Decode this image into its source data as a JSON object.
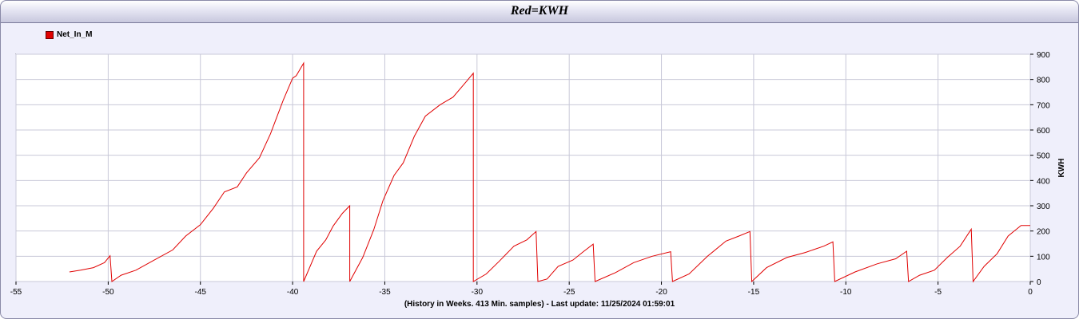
{
  "chart_data": {
    "type": "line",
    "title": "Red=KWH",
    "xlabel": "(History in Weeks. 413 Min. samples) - Last update: 11/25/2024 01:59:01",
    "ylabel": "KWH",
    "xlim": [
      -55,
      0
    ],
    "ylim": [
      0,
      900
    ],
    "x_ticks": [
      -55,
      -50,
      -45,
      -40,
      -35,
      -30,
      -25,
      -20,
      -15,
      -10,
      -5,
      0
    ],
    "y_ticks": [
      0,
      100,
      200,
      300,
      400,
      500,
      600,
      700,
      800,
      900
    ],
    "grid": true,
    "legend_position": "top-left",
    "series": [
      {
        "name": "Net_In_M",
        "color": "#e00000",
        "points": [
          [
            -52.1,
            38
          ],
          [
            -51.5,
            45
          ],
          [
            -50.8,
            55
          ],
          [
            -50.2,
            75
          ],
          [
            -49.9,
            102
          ],
          [
            -49.8,
            0
          ],
          [
            -49.3,
            25
          ],
          [
            -48.5,
            45
          ],
          [
            -47.5,
            85
          ],
          [
            -46.5,
            125
          ],
          [
            -45.8,
            180
          ],
          [
            -45.0,
            225
          ],
          [
            -44.3,
            290
          ],
          [
            -43.7,
            355
          ],
          [
            -43.0,
            375
          ],
          [
            -42.5,
            430
          ],
          [
            -41.8,
            490
          ],
          [
            -41.2,
            585
          ],
          [
            -40.5,
            720
          ],
          [
            -40.0,
            805
          ],
          [
            -39.8,
            815
          ],
          [
            -39.6,
            840
          ],
          [
            -39.4,
            865
          ],
          [
            -39.4,
            0
          ],
          [
            -38.7,
            120
          ],
          [
            -38.2,
            165
          ],
          [
            -37.8,
            220
          ],
          [
            -37.3,
            270
          ],
          [
            -36.9,
            300
          ],
          [
            -36.9,
            0
          ],
          [
            -36.2,
            95
          ],
          [
            -35.6,
            205
          ],
          [
            -35.1,
            320
          ],
          [
            -34.5,
            420
          ],
          [
            -34.0,
            470
          ],
          [
            -33.4,
            575
          ],
          [
            -32.8,
            655
          ],
          [
            -32.0,
            700
          ],
          [
            -31.3,
            730
          ],
          [
            -30.6,
            790
          ],
          [
            -30.2,
            825
          ],
          [
            -30.2,
            0
          ],
          [
            -29.5,
            30
          ],
          [
            -28.8,
            80
          ],
          [
            -28.0,
            140
          ],
          [
            -27.3,
            165
          ],
          [
            -26.8,
            198
          ],
          [
            -26.7,
            0
          ],
          [
            -26.2,
            10
          ],
          [
            -25.6,
            60
          ],
          [
            -24.8,
            85
          ],
          [
            -24.2,
            120
          ],
          [
            -23.7,
            148
          ],
          [
            -23.6,
            0
          ],
          [
            -22.5,
            35
          ],
          [
            -21.5,
            75
          ],
          [
            -20.5,
            100
          ],
          [
            -19.5,
            118
          ],
          [
            -19.4,
            0
          ],
          [
            -18.5,
            30
          ],
          [
            -17.5,
            100
          ],
          [
            -16.5,
            160
          ],
          [
            -15.8,
            180
          ],
          [
            -15.2,
            198
          ],
          [
            -15.1,
            0
          ],
          [
            -14.3,
            55
          ],
          [
            -13.2,
            95
          ],
          [
            -12.2,
            115
          ],
          [
            -11.2,
            140
          ],
          [
            -10.7,
            157
          ],
          [
            -10.6,
            0
          ],
          [
            -9.5,
            38
          ],
          [
            -8.3,
            70
          ],
          [
            -7.3,
            90
          ],
          [
            -6.7,
            120
          ],
          [
            -6.6,
            0
          ],
          [
            -6.0,
            25
          ],
          [
            -5.2,
            45
          ],
          [
            -4.5,
            95
          ],
          [
            -3.8,
            140
          ],
          [
            -3.2,
            207
          ],
          [
            -3.1,
            0
          ],
          [
            -2.5,
            60
          ],
          [
            -1.8,
            110
          ],
          [
            -1.2,
            180
          ],
          [
            -0.5,
            222
          ],
          [
            0,
            222
          ]
        ]
      }
    ]
  }
}
